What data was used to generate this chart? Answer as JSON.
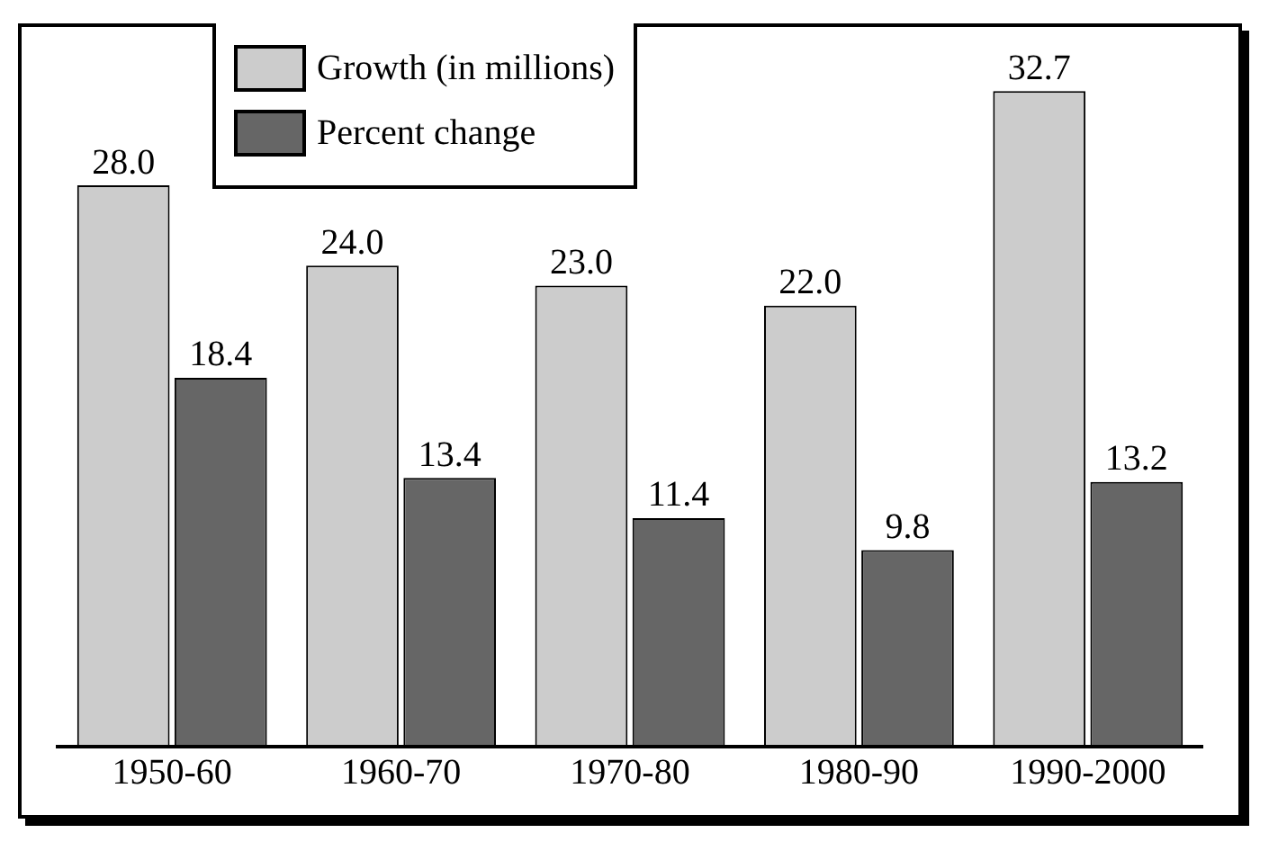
{
  "chart_data": {
    "type": "bar",
    "categories": [
      "1950-60",
      "1960-70",
      "1970-80",
      "1980-90",
      "1990-2000"
    ],
    "series": [
      {
        "name": "Growth (in millions)",
        "color": "#cccccc",
        "values": [
          28,
          24,
          23,
          22,
          32.7
        ],
        "value_labels": [
          "28.0",
          "24.0",
          "23.0",
          "22.0",
          "32.7"
        ]
      },
      {
        "name": "Percent change",
        "color": "#666666",
        "values": [
          18.4,
          13.4,
          11.4,
          9.8,
          13.2
        ],
        "value_labels": [
          "18.4",
          "13.4",
          "11.4",
          "9.8",
          "13.2"
        ]
      }
    ],
    "legend": "top left",
    "grid": false
  }
}
